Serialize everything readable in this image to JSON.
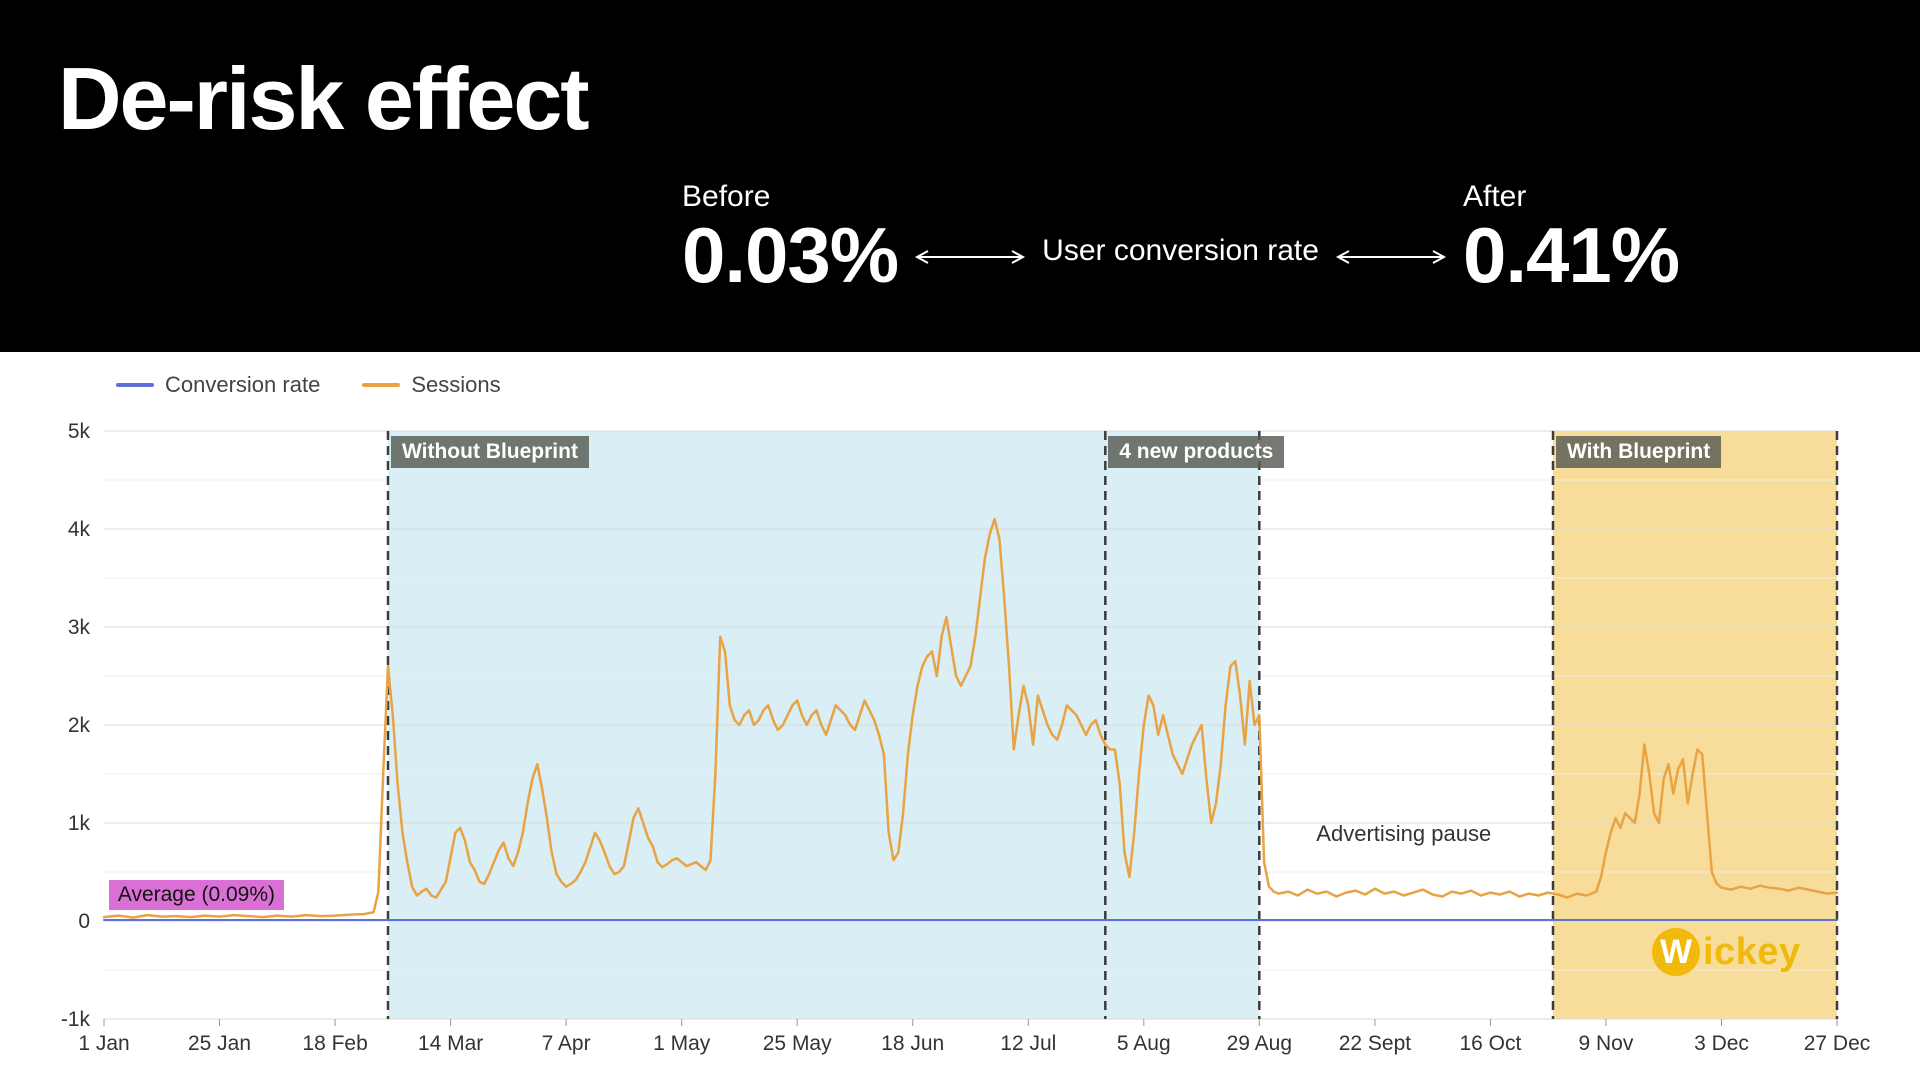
{
  "header": {
    "title": "De-risk effect",
    "before_label": "Before",
    "before_value": "0.03%",
    "metric_label": "User conversion rate",
    "after_label": "After",
    "after_value": "0.41%"
  },
  "legend": [
    {
      "label": "Conversion rate",
      "color": "#5f6fd8"
    },
    {
      "label": "Sessions",
      "color": "#e8a344"
    }
  ],
  "logo": {
    "mark": "W",
    "text": "ickey",
    "color": "#f0b90b"
  },
  "chart_data": {
    "type": "line",
    "title": "",
    "xlabel": "",
    "ylabel": "Sessions",
    "x_unit": "day of year",
    "xlim": [
      0,
      360
    ],
    "ylim": [
      -1000,
      5000
    ],
    "grid": true,
    "x_ticks": [
      {
        "day": 0,
        "label": "1 Jan"
      },
      {
        "day": 24,
        "label": "25 Jan"
      },
      {
        "day": 48,
        "label": "18 Feb"
      },
      {
        "day": 72,
        "label": "14 Mar"
      },
      {
        "day": 96,
        "label": "7 Apr"
      },
      {
        "day": 120,
        "label": "1 May"
      },
      {
        "day": 144,
        "label": "25 May"
      },
      {
        "day": 168,
        "label": "18 Jun"
      },
      {
        "day": 192,
        "label": "12 Jul"
      },
      {
        "day": 216,
        "label": "5 Aug"
      },
      {
        "day": 240,
        "label": "29 Aug"
      },
      {
        "day": 264,
        "label": "22 Sept"
      },
      {
        "day": 288,
        "label": "16 Oct"
      },
      {
        "day": 312,
        "label": "9 Nov"
      },
      {
        "day": 336,
        "label": "3 Dec"
      },
      {
        "day": 360,
        "label": "27 Dec"
      }
    ],
    "y_ticks": [
      {
        "value": 5000,
        "label": "5k"
      },
      {
        "value": 4000,
        "label": "4k"
      },
      {
        "value": 3000,
        "label": "3k"
      },
      {
        "value": 2000,
        "label": "2k"
      },
      {
        "value": 1000,
        "label": "1k"
      },
      {
        "value": 0,
        "label": "0"
      },
      {
        "value": -1000,
        "label": "-1k"
      }
    ],
    "regions": [
      {
        "label": "Without Blueprint",
        "start_day": 59,
        "end_day": 240,
        "fill": "#d2ebf3",
        "opacity": 0.85
      },
      {
        "label": "4 new products",
        "start_day": 208,
        "end_day": 240,
        "fill": null,
        "opacity": 0
      },
      {
        "label": "With Blueprint",
        "start_day": 301,
        "end_day": 360,
        "fill": "#f7d88f",
        "opacity": 0.9
      }
    ],
    "dashed_lines_days": [
      59,
      208,
      240,
      301,
      360
    ],
    "annotations": [
      {
        "text": "Average (0.09%)",
        "day": 1,
        "value": 280,
        "bg": "#da70d6",
        "align": "left"
      },
      {
        "text": "Advertising pause",
        "day": 270,
        "value": 880,
        "bg": null,
        "align": "center"
      }
    ],
    "series": [
      {
        "name": "Conversion rate",
        "color": "#5f6fd8",
        "width": 2,
        "note": "flat near 0 on sessions axis; average 0.09%",
        "points": [
          [
            0,
            10
          ],
          [
            360,
            10
          ]
        ]
      },
      {
        "name": "Sessions",
        "color": "#e8a344",
        "width": 2.5,
        "points": [
          [
            0,
            40
          ],
          [
            3,
            55
          ],
          [
            6,
            35
          ],
          [
            9,
            60
          ],
          [
            12,
            45
          ],
          [
            15,
            50
          ],
          [
            18,
            40
          ],
          [
            21,
            55
          ],
          [
            24,
            45
          ],
          [
            27,
            60
          ],
          [
            30,
            50
          ],
          [
            33,
            40
          ],
          [
            36,
            55
          ],
          [
            39,
            45
          ],
          [
            42,
            60
          ],
          [
            45,
            50
          ],
          [
            48,
            55
          ],
          [
            51,
            65
          ],
          [
            54,
            70
          ],
          [
            56,
            90
          ],
          [
            57,
            300
          ],
          [
            58,
            1500
          ],
          [
            59,
            2600
          ],
          [
            60,
            2100
          ],
          [
            61,
            1400
          ],
          [
            62,
            900
          ],
          [
            63,
            600
          ],
          [
            64,
            350
          ],
          [
            65,
            260
          ],
          [
            66,
            300
          ],
          [
            67,
            330
          ],
          [
            68,
            260
          ],
          [
            69,
            240
          ],
          [
            70,
            320
          ],
          [
            71,
            400
          ],
          [
            72,
            650
          ],
          [
            73,
            900
          ],
          [
            74,
            950
          ],
          [
            75,
            820
          ],
          [
            76,
            600
          ],
          [
            77,
            520
          ],
          [
            78,
            400
          ],
          [
            79,
            380
          ],
          [
            80,
            480
          ],
          [
            81,
            600
          ],
          [
            82,
            720
          ],
          [
            83,
            800
          ],
          [
            84,
            640
          ],
          [
            85,
            560
          ],
          [
            86,
            700
          ],
          [
            87,
            900
          ],
          [
            88,
            1200
          ],
          [
            89,
            1450
          ],
          [
            90,
            1600
          ],
          [
            91,
            1350
          ],
          [
            92,
            1050
          ],
          [
            93,
            700
          ],
          [
            94,
            480
          ],
          [
            95,
            400
          ],
          [
            96,
            350
          ],
          [
            97,
            380
          ],
          [
            98,
            420
          ],
          [
            99,
            500
          ],
          [
            100,
            600
          ],
          [
            101,
            750
          ],
          [
            102,
            900
          ],
          [
            103,
            820
          ],
          [
            104,
            700
          ],
          [
            105,
            560
          ],
          [
            106,
            480
          ],
          [
            107,
            500
          ],
          [
            108,
            560
          ],
          [
            109,
            800
          ],
          [
            110,
            1050
          ],
          [
            111,
            1150
          ],
          [
            112,
            1000
          ],
          [
            113,
            850
          ],
          [
            114,
            760
          ],
          [
            115,
            600
          ],
          [
            116,
            550
          ],
          [
            117,
            580
          ],
          [
            118,
            620
          ],
          [
            119,
            640
          ],
          [
            120,
            600
          ],
          [
            121,
            560
          ],
          [
            122,
            580
          ],
          [
            123,
            600
          ],
          [
            124,
            560
          ],
          [
            125,
            520
          ],
          [
            126,
            620
          ],
          [
            127,
            1500
          ],
          [
            128,
            2900
          ],
          [
            129,
            2750
          ],
          [
            130,
            2200
          ],
          [
            131,
            2050
          ],
          [
            132,
            2000
          ],
          [
            133,
            2100
          ],
          [
            134,
            2150
          ],
          [
            135,
            2000
          ],
          [
            136,
            2050
          ],
          [
            137,
            2150
          ],
          [
            138,
            2200
          ],
          [
            139,
            2050
          ],
          [
            140,
            1950
          ],
          [
            141,
            2000
          ],
          [
            142,
            2100
          ],
          [
            143,
            2200
          ],
          [
            144,
            2250
          ],
          [
            145,
            2100
          ],
          [
            146,
            2000
          ],
          [
            147,
            2100
          ],
          [
            148,
            2150
          ],
          [
            149,
            2000
          ],
          [
            150,
            1900
          ],
          [
            151,
            2050
          ],
          [
            152,
            2200
          ],
          [
            153,
            2150
          ],
          [
            154,
            2100
          ],
          [
            155,
            2000
          ],
          [
            156,
            1950
          ],
          [
            157,
            2100
          ],
          [
            158,
            2250
          ],
          [
            159,
            2150
          ],
          [
            160,
            2050
          ],
          [
            161,
            1900
          ],
          [
            162,
            1700
          ],
          [
            163,
            900
          ],
          [
            164,
            620
          ],
          [
            165,
            700
          ],
          [
            166,
            1100
          ],
          [
            167,
            1700
          ],
          [
            168,
            2100
          ],
          [
            169,
            2400
          ],
          [
            170,
            2600
          ],
          [
            171,
            2700
          ],
          [
            172,
            2750
          ],
          [
            173,
            2500
          ],
          [
            174,
            2900
          ],
          [
            175,
            3100
          ],
          [
            176,
            2800
          ],
          [
            177,
            2500
          ],
          [
            178,
            2400
          ],
          [
            179,
            2500
          ],
          [
            180,
            2600
          ],
          [
            181,
            2900
          ],
          [
            182,
            3300
          ],
          [
            183,
            3700
          ],
          [
            184,
            3950
          ],
          [
            185,
            4100
          ],
          [
            186,
            3900
          ],
          [
            187,
            3300
          ],
          [
            188,
            2600
          ],
          [
            189,
            1750
          ],
          [
            190,
            2100
          ],
          [
            191,
            2400
          ],
          [
            192,
            2200
          ],
          [
            193,
            1800
          ],
          [
            194,
            2300
          ],
          [
            195,
            2150
          ],
          [
            196,
            2000
          ],
          [
            197,
            1900
          ],
          [
            198,
            1850
          ],
          [
            199,
            2000
          ],
          [
            200,
            2200
          ],
          [
            201,
            2150
          ],
          [
            202,
            2100
          ],
          [
            203,
            2000
          ],
          [
            204,
            1900
          ],
          [
            205,
            2000
          ],
          [
            206,
            2050
          ],
          [
            207,
            1900
          ],
          [
            208,
            1800
          ],
          [
            209,
            1750
          ],
          [
            210,
            1750
          ],
          [
            211,
            1400
          ],
          [
            212,
            700
          ],
          [
            213,
            450
          ],
          [
            214,
            900
          ],
          [
            215,
            1500
          ],
          [
            216,
            2000
          ],
          [
            217,
            2300
          ],
          [
            218,
            2200
          ],
          [
            219,
            1900
          ],
          [
            220,
            2100
          ],
          [
            221,
            1900
          ],
          [
            222,
            1700
          ],
          [
            223,
            1600
          ],
          [
            224,
            1500
          ],
          [
            225,
            1650
          ],
          [
            226,
            1800
          ],
          [
            227,
            1900
          ],
          [
            228,
            2000
          ],
          [
            229,
            1450
          ],
          [
            230,
            1000
          ],
          [
            231,
            1200
          ],
          [
            232,
            1600
          ],
          [
            233,
            2200
          ],
          [
            234,
            2600
          ],
          [
            235,
            2650
          ],
          [
            236,
            2300
          ],
          [
            237,
            1800
          ],
          [
            238,
            2450
          ],
          [
            239,
            2000
          ],
          [
            240,
            2100
          ],
          [
            241,
            600
          ],
          [
            242,
            350
          ],
          [
            243,
            300
          ],
          [
            244,
            280
          ],
          [
            246,
            300
          ],
          [
            248,
            260
          ],
          [
            250,
            320
          ],
          [
            252,
            280
          ],
          [
            254,
            300
          ],
          [
            256,
            250
          ],
          [
            258,
            290
          ],
          [
            260,
            310
          ],
          [
            262,
            270
          ],
          [
            264,
            330
          ],
          [
            266,
            280
          ],
          [
            268,
            300
          ],
          [
            270,
            260
          ],
          [
            272,
            290
          ],
          [
            274,
            320
          ],
          [
            276,
            270
          ],
          [
            278,
            250
          ],
          [
            280,
            300
          ],
          [
            282,
            280
          ],
          [
            284,
            310
          ],
          [
            286,
            260
          ],
          [
            288,
            290
          ],
          [
            290,
            270
          ],
          [
            292,
            300
          ],
          [
            294,
            250
          ],
          [
            296,
            280
          ],
          [
            298,
            260
          ],
          [
            300,
            290
          ],
          [
            302,
            270
          ],
          [
            304,
            240
          ],
          [
            306,
            280
          ],
          [
            308,
            260
          ],
          [
            309,
            280
          ],
          [
            310,
            300
          ],
          [
            311,
            450
          ],
          [
            312,
            700
          ],
          [
            313,
            900
          ],
          [
            314,
            1050
          ],
          [
            315,
            950
          ],
          [
            316,
            1100
          ],
          [
            317,
            1050
          ],
          [
            318,
            1000
          ],
          [
            319,
            1300
          ],
          [
            320,
            1800
          ],
          [
            321,
            1500
          ],
          [
            322,
            1100
          ],
          [
            323,
            1000
          ],
          [
            324,
            1450
          ],
          [
            325,
            1600
          ],
          [
            326,
            1300
          ],
          [
            327,
            1550
          ],
          [
            328,
            1650
          ],
          [
            329,
            1200
          ],
          [
            330,
            1500
          ],
          [
            331,
            1750
          ],
          [
            332,
            1700
          ],
          [
            333,
            1100
          ],
          [
            334,
            500
          ],
          [
            335,
            380
          ],
          [
            336,
            340
          ],
          [
            338,
            320
          ],
          [
            340,
            350
          ],
          [
            342,
            330
          ],
          [
            344,
            360
          ],
          [
            346,
            340
          ],
          [
            348,
            330
          ],
          [
            350,
            310
          ],
          [
            352,
            340
          ],
          [
            354,
            320
          ],
          [
            356,
            300
          ],
          [
            358,
            280
          ],
          [
            360,
            290
          ]
        ]
      }
    ]
  }
}
